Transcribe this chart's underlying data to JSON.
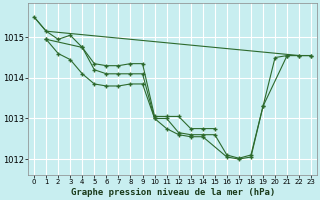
{
  "background_color": "#c8eef0",
  "grid_color": "#ffffff",
  "line_color": "#2d6a2d",
  "title": "Graphe pression niveau de la mer (hPa)",
  "title_fontsize": 6.5,
  "xlim": [
    -0.5,
    23.5
  ],
  "ylim": [
    1011.6,
    1015.85
  ],
  "yticks": [
    1012,
    1013,
    1014,
    1015
  ],
  "ytick_fontsize": 6,
  "xtick_fontsize": 5,
  "xticks": [
    0,
    1,
    2,
    3,
    4,
    5,
    6,
    7,
    8,
    9,
    10,
    11,
    12,
    13,
    14,
    15,
    16,
    17,
    18,
    19,
    20,
    21,
    22,
    23
  ],
  "line1": {
    "x": [
      0,
      1,
      22,
      23
    ],
    "y": [
      1015.5,
      1015.15,
      1014.55,
      1014.55
    ]
  },
  "line2": {
    "x": [
      1,
      2,
      3,
      4,
      5,
      6,
      7,
      8,
      9,
      10,
      11,
      12,
      13,
      14,
      15,
      16,
      17,
      18,
      19,
      20,
      21,
      22,
      23
    ],
    "y": [
      1014.95,
      1014.6,
      1014.45,
      1014.1,
      1013.85,
      1013.8,
      1013.8,
      1013.85,
      1013.85,
      1013.0,
      1013.0,
      1012.65,
      1012.6,
      1012.6,
      1012.6,
      1012.1,
      1012.02,
      1012.1,
      1013.3,
      1014.5,
      1014.55,
      1014.55,
      1014.55
    ]
  },
  "line3": {
    "x": [
      0,
      1,
      2,
      3,
      4,
      5,
      6,
      7,
      8,
      9,
      10,
      11,
      12,
      13,
      14,
      15
    ],
    "y": [
      1015.5,
      1015.15,
      1014.95,
      1015.05,
      1014.75,
      1014.35,
      1014.3,
      1014.3,
      1014.35,
      1014.35,
      1013.05,
      1013.05,
      1013.05,
      1012.75,
      1012.75,
      1012.75
    ]
  },
  "line4": {
    "x": [
      1,
      4,
      5,
      6,
      7,
      8,
      9,
      10,
      11,
      12,
      13,
      14,
      16,
      17,
      18,
      19,
      21,
      22,
      23
    ],
    "y": [
      1014.95,
      1014.75,
      1014.2,
      1014.1,
      1014.1,
      1014.1,
      1014.1,
      1013.0,
      1012.75,
      1012.6,
      1012.55,
      1012.55,
      1012.05,
      1012.0,
      1012.05,
      1013.3,
      1014.55,
      1014.55,
      1014.55
    ]
  }
}
